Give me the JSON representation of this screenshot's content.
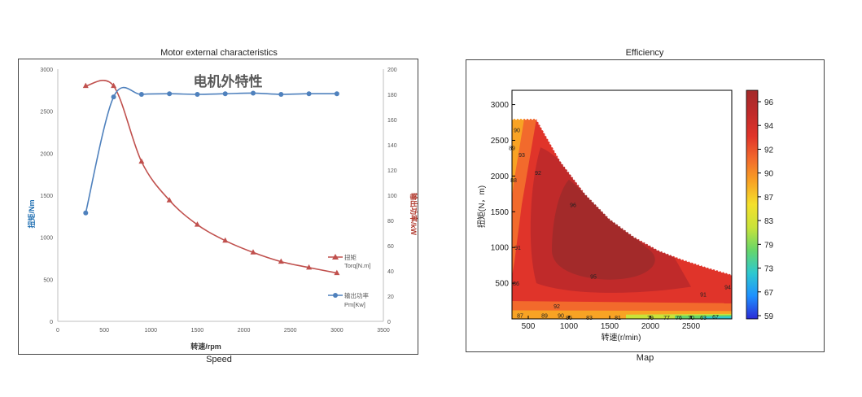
{
  "left": {
    "caption_top": "Motor external characteristics",
    "caption_bottom": "Speed",
    "chart_data": {
      "type": "line",
      "title": "电机外特性",
      "xlabel": "转速/rpm",
      "ylabel": "扭矩/Nm",
      "y2label": "输出功率/kW",
      "xlim": [
        0,
        3500
      ],
      "ylim": [
        0,
        3000
      ],
      "y2lim": [
        0,
        200
      ],
      "xticks": [
        "0",
        "500",
        "1000",
        "1500",
        "2000",
        "2500",
        "3000",
        "3500"
      ],
      "yticks": [
        "0",
        "500",
        "1000",
        "1500",
        "2000",
        "2500",
        "3000"
      ],
      "y2ticks": [
        "0",
        "20",
        "40",
        "60",
        "80",
        "100",
        "120",
        "140",
        "160",
        "180",
        "200"
      ],
      "grid": false,
      "legend_position": "right",
      "series": [
        {
          "name": "扭矩",
          "name2": "Torq[N.m]",
          "axis": "left",
          "color": "#c0504d",
          "marker": "triangle",
          "x": [
            300,
            600,
            900,
            1200,
            1500,
            1800,
            2100,
            2400,
            2700,
            3000
          ],
          "y": [
            2800,
            2800,
            1900,
            1440,
            1150,
            960,
            820,
            710,
            640,
            575
          ]
        },
        {
          "name": "输出功率",
          "name2": "Pm[Kw]",
          "axis": "right",
          "color": "#4f81bd",
          "marker": "circle",
          "x": [
            300,
            600,
            900,
            1200,
            1500,
            1800,
            2100,
            2400,
            2700,
            3000
          ],
          "y": [
            86,
            178,
            180,
            180.5,
            180,
            180.5,
            181,
            180,
            180.5,
            180.5
          ]
        }
      ]
    }
  },
  "right": {
    "caption_top": "Efficiency",
    "caption_bottom": "Map",
    "chart_data": {
      "type": "heatmap",
      "xlabel": "转速(r/min)",
      "ylabel": "扭矩(N，m)",
      "xlim": [
        300,
        3000
      ],
      "ylim": [
        0,
        3200
      ],
      "xticks": [
        "500",
        "1000",
        "1500",
        "2000",
        "2500"
      ],
      "yticks": [
        "500",
        "1000",
        "1500",
        "2000",
        "2500",
        "3000"
      ],
      "colorbar_ticks": [
        "59",
        "67",
        "73",
        "79",
        "83",
        "87",
        "90",
        "92",
        "94",
        "96"
      ],
      "contour_labels": [
        "87",
        "89",
        "90",
        "85",
        "83",
        "81",
        "79",
        "77",
        "76",
        "70",
        "63",
        "67",
        "92",
        "91",
        "96",
        "95",
        "94",
        "93",
        "92",
        "91",
        "90",
        "89",
        "88",
        "86"
      ],
      "colors": [
        "#2b2bd6",
        "#1e90ff",
        "#2ec8d0",
        "#66d66a",
        "#c8e33a",
        "#f4e02c",
        "#f8a324",
        "#f26a2c",
        "#e0342a",
        "#a32a2a"
      ]
    }
  }
}
